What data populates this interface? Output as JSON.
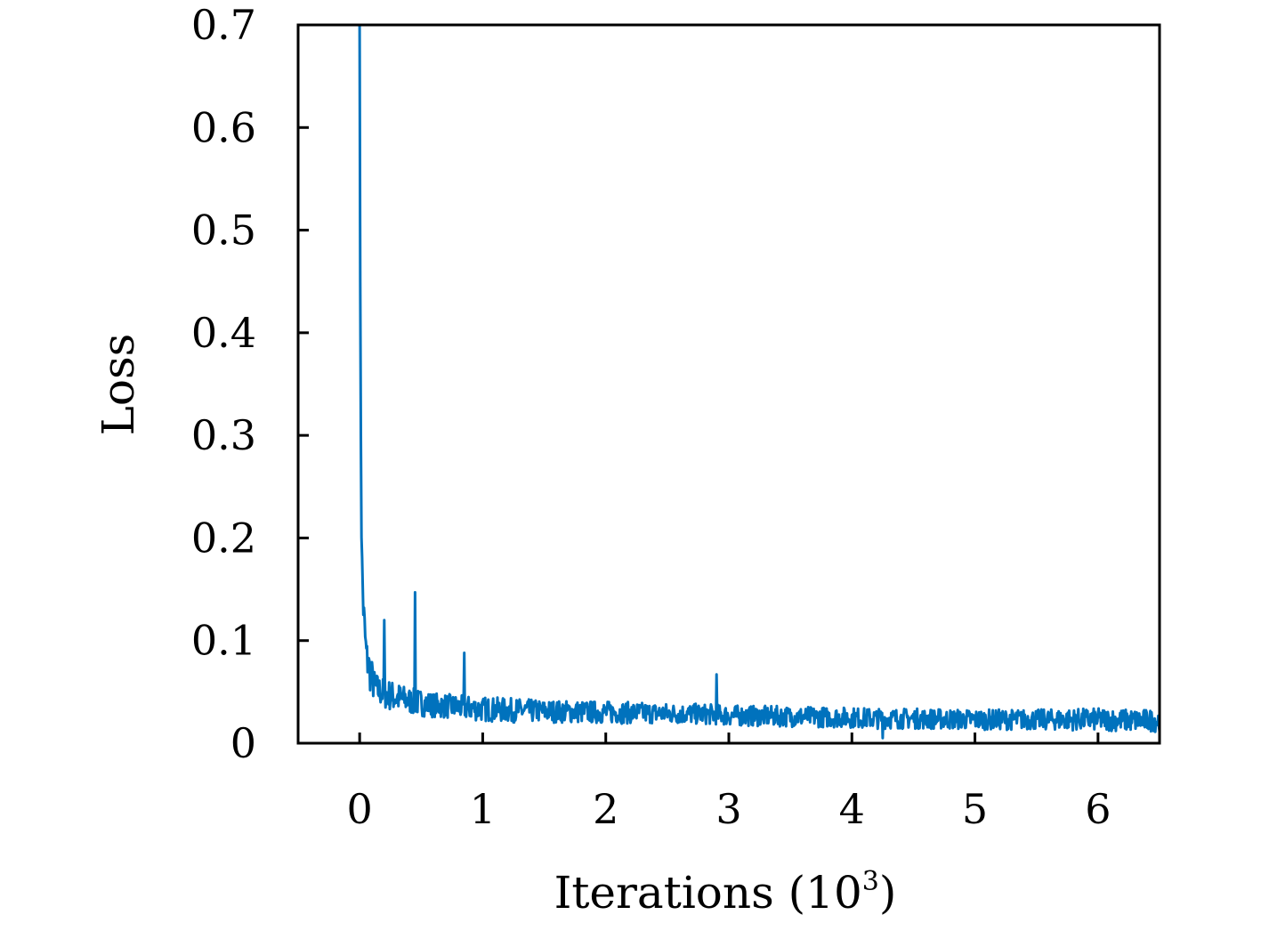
{
  "chart_data": {
    "type": "line",
    "title": "",
    "xlabel": "Iterations (10",
    "xlabel_sup": "3",
    "xlabel_close": ")",
    "ylabel": "Loss",
    "xlim": [
      -0.5,
      6.5
    ],
    "ylim": [
      0,
      0.7
    ],
    "xticks": [
      0,
      1,
      2,
      3,
      4,
      5,
      6
    ],
    "xtick_labels": [
      "0",
      "1",
      "2",
      "3",
      "4",
      "5",
      "6"
    ],
    "yticks": [
      0,
      0.1,
      0.2,
      0.3,
      0.4,
      0.5,
      0.6,
      0.7
    ],
    "ytick_labels": [
      "0",
      "0.1",
      "0.2",
      "0.3",
      "0.4",
      "0.5",
      "0.6",
      "0.7"
    ],
    "grid": false,
    "legend": null,
    "series": [
      {
        "color": "#0072BD",
        "x": [
          0.0,
          0.005,
          0.01,
          0.015,
          0.02,
          0.03,
          0.04,
          0.05,
          0.06,
          0.07,
          0.08,
          0.09,
          0.1,
          0.12,
          0.15,
          0.2,
          0.25,
          0.3,
          0.4,
          0.45,
          0.5,
          0.6,
          0.8,
          1.0,
          1.2,
          1.5,
          2.0,
          2.5,
          2.9,
          3.0,
          3.5,
          4.0,
          4.2,
          4.5,
          5.0,
          5.5,
          6.0,
          6.3,
          6.5
        ],
        "y": [
          0.7,
          0.45,
          0.3,
          0.21,
          0.17,
          0.13,
          0.11,
          0.09,
          0.08,
          0.075,
          0.07,
          0.065,
          0.06,
          0.055,
          0.05,
          0.047,
          0.045,
          0.043,
          0.04,
          0.039,
          0.038,
          0.036,
          0.034,
          0.032,
          0.031,
          0.03,
          0.029,
          0.028,
          0.027,
          0.026,
          0.025,
          0.024,
          0.023,
          0.023,
          0.022,
          0.022,
          0.022,
          0.021,
          0.021
        ],
        "noise_amplitude": [
          0,
          0,
          0,
          0.02,
          0.02,
          0.02,
          0.02,
          0.02,
          0.02,
          0.02,
          0.02,
          0.02,
          0.02,
          0.015,
          0.015,
          0.015,
          0.015,
          0.015,
          0.013,
          0.013,
          0.013,
          0.012,
          0.012,
          0.012,
          0.012,
          0.011,
          0.011,
          0.01,
          0.01,
          0.01,
          0.01,
          0.01,
          0.01,
          0.01,
          0.01,
          0.01,
          0.011,
          0.011,
          0.011
        ],
        "spikes": [
          {
            "x": 0.45,
            "y": 0.147
          },
          {
            "x": 0.2,
            "y": 0.12
          },
          {
            "x": 0.85,
            "y": 0.088
          },
          {
            "x": 2.9,
            "y": 0.067
          },
          {
            "x": 4.25,
            "y": 0.005
          }
        ]
      }
    ]
  }
}
